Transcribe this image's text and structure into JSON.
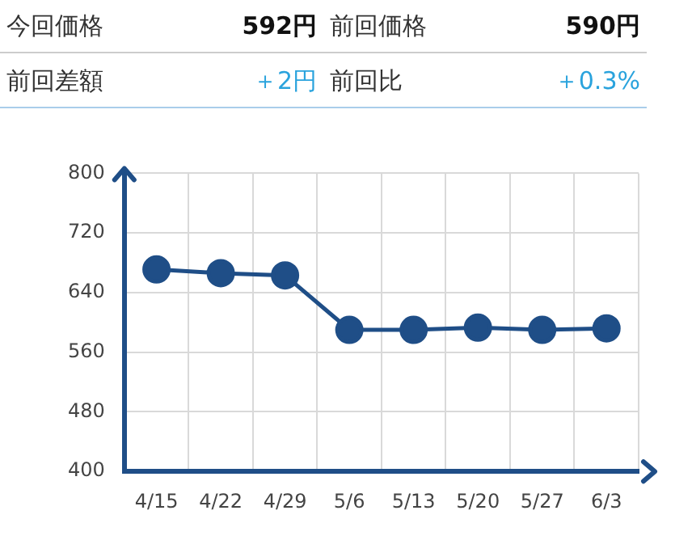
{
  "chart_data": {
    "type": "line",
    "annotations": [
      "今回価格",
      "592円",
      "前回価格",
      "590円",
      "前回差額",
      "＋2円",
      "前回比",
      "＋0.3%"
    ],
    "categories": [
      "4/15",
      "4/22",
      "4/29",
      "5/6",
      "5/13",
      "5/20",
      "5/27",
      "6/3"
    ],
    "series": [
      {
        "color": "#1f4e87",
        "values": [
          671,
          666,
          663,
          590,
          590,
          593,
          590,
          592
        ]
      }
    ],
    "ylim": [
      400,
      800
    ],
    "yticks": [
      400,
      480,
      560,
      640,
      720,
      800
    ],
    "grid": true,
    "legend": false,
    "marker": "circle",
    "line_style": "solid"
  }
}
